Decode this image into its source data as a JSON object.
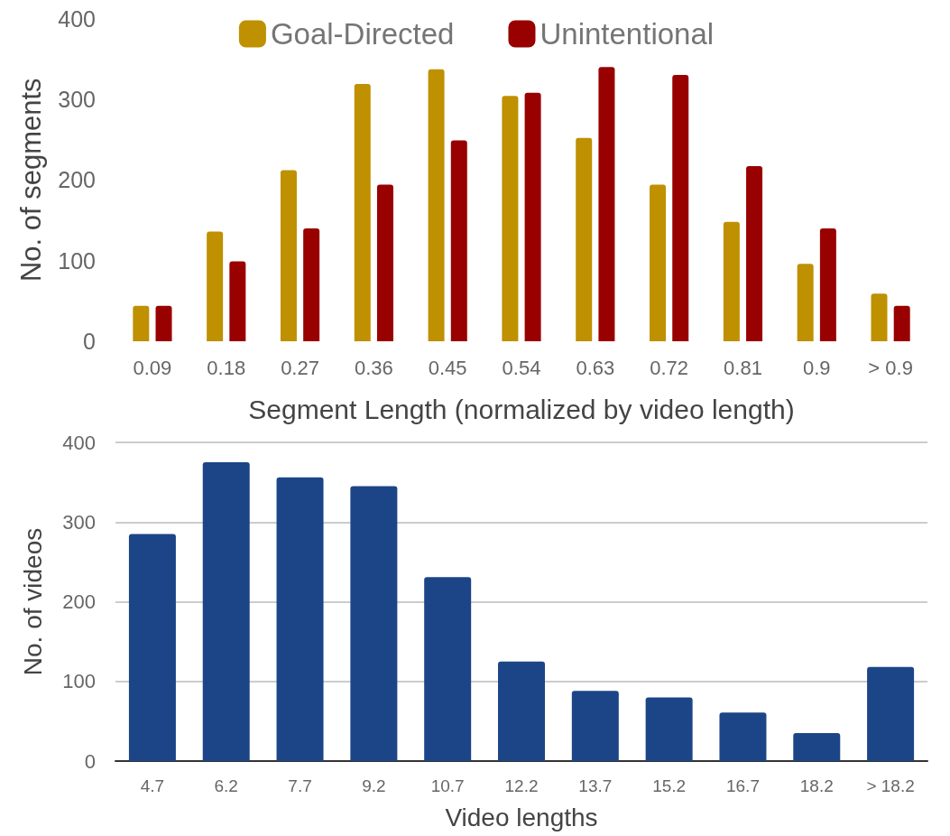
{
  "chart_data": [
    {
      "type": "bar",
      "categories": [
        "0.09",
        "0.18",
        "0.27",
        "0.36",
        "0.45",
        "0.54",
        "0.63",
        "0.72",
        "0.81",
        "0.9",
        "> 0.9"
      ],
      "series": [
        {
          "name": "Goal-Directed",
          "color": "#bf9000",
          "values": [
            44,
            136,
            212,
            319,
            337,
            304,
            252,
            194,
            148,
            96,
            59
          ]
        },
        {
          "name": "Unintentional",
          "color": "#990000",
          "values": [
            44,
            99,
            140,
            194,
            249,
            308,
            340,
            330,
            217,
            140,
            44
          ]
        }
      ],
      "xlabel": "Segment Length (normalized by video length)",
      "ylabel": "No. of segments",
      "ylim": [
        0,
        400
      ],
      "yticks": [
        0,
        100,
        200,
        300,
        400
      ],
      "grid": false,
      "legend": "top"
    },
    {
      "type": "bar",
      "categories": [
        "4.7",
        "6.2",
        "7.7",
        "9.2",
        "10.7",
        "12.2",
        "13.7",
        "15.2",
        "16.7",
        "18.2",
        "> 18.2"
      ],
      "series": [
        {
          "color": "#1c4587",
          "values": [
            285,
            375,
            356,
            345,
            231,
            125,
            88,
            80,
            61,
            35,
            118
          ]
        }
      ],
      "xlabel": "Video lengths",
      "ylabel": "No. of videos",
      "ylim": [
        0,
        400
      ],
      "yticks": [
        0,
        100,
        200,
        300,
        400
      ],
      "grid": "y"
    }
  ]
}
